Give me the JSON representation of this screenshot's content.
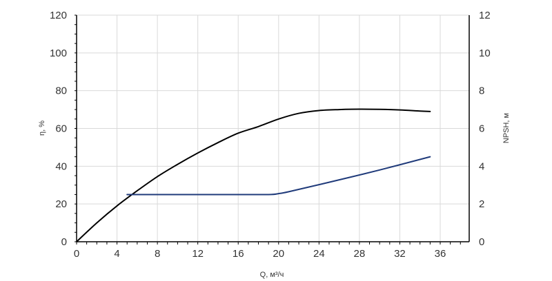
{
  "chart_data": {
    "type": "line",
    "xlabel": "Q, м³/ч",
    "ylabel_left": "η, %",
    "ylabel_right": "NPSH, м",
    "xlim": [
      0,
      38
    ],
    "x_ticks": [
      0,
      4,
      8,
      12,
      16,
      20,
      24,
      28,
      32,
      36
    ],
    "ylim_left": [
      0,
      120
    ],
    "y_ticks_left": [
      0,
      20,
      40,
      60,
      80,
      100,
      120
    ],
    "ylim_right": [
      0,
      12
    ],
    "y_ticks_right": [
      0,
      2,
      4,
      6,
      8,
      10,
      12
    ],
    "grid": true,
    "series": [
      {
        "axis": "left",
        "color": "#000000",
        "x": [
          0,
          2,
          4,
          6,
          8,
          10,
          12,
          14,
          16,
          18,
          20,
          22,
          24,
          26,
          28,
          30,
          32,
          34,
          35
        ],
        "y": [
          0,
          10,
          19,
          27,
          34.5,
          41,
          47,
          52.5,
          57.5,
          61,
          65,
          68,
          69.5,
          70,
          70.2,
          70.1,
          69.8,
          69.2,
          69
        ]
      },
      {
        "axis": "right",
        "color": "#1f3a7a",
        "x": [
          5,
          10,
          15,
          19,
          20,
          21,
          25,
          30,
          35
        ],
        "y": [
          2.5,
          2.5,
          2.5,
          2.5,
          2.55,
          2.65,
          3.15,
          3.8,
          4.5
        ]
      }
    ]
  }
}
